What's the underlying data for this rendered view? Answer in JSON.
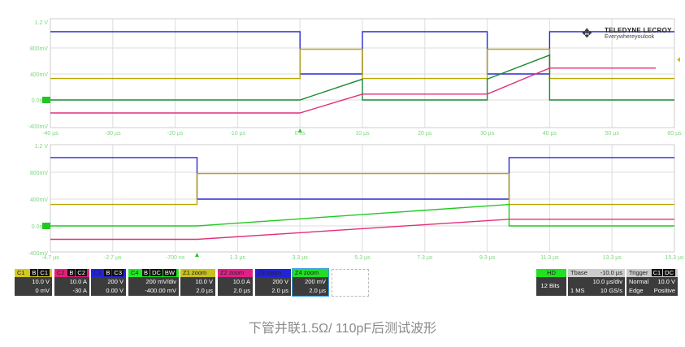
{
  "logo": {
    "brand": "TELEDYNE LECROY",
    "tagline": "Everywhereyoulook"
  },
  "colors": {
    "C1": "#b8a600",
    "C2": "#e0307a",
    "C3": "#2a2ad0",
    "C4": "#22c822",
    "C4dark": "#1a8a35",
    "axis_text": "#7cd67c"
  },
  "chart_data": [
    {
      "type": "line",
      "xlabel": "",
      "ylabel": "",
      "xlim": [
        -40,
        60
      ],
      "ylim": [
        -0.4,
        1.2
      ],
      "grid": true,
      "x_ticks": [
        "-40 µs",
        "-30 µs",
        "-20 µs",
        "-10 µs",
        "0 ns",
        "10 µs",
        "20 µs",
        "30 µs",
        "40 µs",
        "50 µs",
        "60 µs"
      ],
      "y_ticks": [
        {
          "v": 1.2,
          "label": "1.2 V"
        },
        {
          "v": 0.8,
          "label": "800mV"
        },
        {
          "v": 0.4,
          "label": "400mV"
        },
        {
          "v": 0,
          "label": "0.0mV"
        },
        {
          "v": -0.4,
          "label": "-400mV"
        }
      ],
      "trigger_time": 0,
      "series": [
        {
          "ch": "C3",
          "points": [
            [
              -40,
              1.05
            ],
            [
              0,
              1.05
            ],
            [
              0,
              0.4
            ],
            [
              10,
              0.4
            ],
            [
              10,
              1.05
            ],
            [
              30,
              1.05
            ],
            [
              30,
              0.4
            ],
            [
              40,
              0.4
            ],
            [
              40,
              1.05
            ],
            [
              60,
              1.05
            ]
          ]
        },
        {
          "ch": "C1",
          "points": [
            [
              -40,
              0.33
            ],
            [
              0,
              0.33
            ],
            [
              0,
              0.78
            ],
            [
              10,
              0.78
            ],
            [
              10,
              0.33
            ],
            [
              30,
              0.33
            ],
            [
              30,
              0.78
            ],
            [
              40,
              0.78
            ],
            [
              40,
              0.33
            ],
            [
              60,
              0.33
            ]
          ]
        },
        {
          "ch": "C4dark",
          "points": [
            [
              -40,
              0
            ],
            [
              0,
              0
            ],
            [
              10,
              0.32
            ],
            [
              10,
              0
            ],
            [
              30,
              0
            ],
            [
              30,
              0.32
            ],
            [
              40,
              0.69
            ],
            [
              40,
              0
            ],
            [
              60,
              0
            ]
          ]
        },
        {
          "ch": "C2",
          "points": [
            [
              -40,
              -0.2
            ],
            [
              0,
              -0.2
            ],
            [
              10,
              0.09
            ],
            [
              30,
              0.09
            ],
            [
              40,
              0.49
            ],
            [
              57,
              0.49
            ]
          ]
        }
      ]
    },
    {
      "type": "line",
      "xlabel": "",
      "ylabel": "",
      "xlim": [
        -4.7,
        15.3
      ],
      "ylim": [
        -0.4,
        1.2
      ],
      "grid": true,
      "x_ticks": [
        "-4.7 µs",
        "-2.7 µs",
        "-700 ns",
        "1.3 µs",
        "3.3 µs",
        "5.3 µs",
        "7.3 µs",
        "9.3 µs",
        "11.3 µs",
        "13.3 µs",
        "15.3 µs"
      ],
      "y_ticks": [
        {
          "v": 1.2,
          "label": "1.2 V"
        },
        {
          "v": 0.8,
          "label": "800mV"
        },
        {
          "v": 0.4,
          "label": "400mV"
        },
        {
          "v": 0,
          "label": "0.0mV"
        },
        {
          "v": -0.4,
          "label": "-400mV"
        }
      ],
      "trigger_time": 0,
      "series": [
        {
          "ch": "C3",
          "points": [
            [
              -4.7,
              1.02
            ],
            [
              0,
              1.02
            ],
            [
              0,
              0.4
            ],
            [
              10,
              0.4
            ],
            [
              10,
              1.02
            ],
            [
              15.3,
              1.02
            ]
          ]
        },
        {
          "ch": "C1",
          "points": [
            [
              -4.7,
              0.32
            ],
            [
              0,
              0.32
            ],
            [
              0,
              0.78
            ],
            [
              10,
              0.78
            ],
            [
              10,
              0.32
            ],
            [
              15.3,
              0.32
            ]
          ]
        },
        {
          "ch": "C4",
          "points": [
            [
              -4.7,
              0
            ],
            [
              0,
              0
            ],
            [
              10,
              0.32
            ],
            [
              10,
              0
            ],
            [
              15.3,
              0
            ]
          ]
        },
        {
          "ch": "C2",
          "points": [
            [
              -4.7,
              -0.2
            ],
            [
              0,
              -0.2
            ],
            [
              10,
              0.1
            ],
            [
              15.3,
              0.1
            ]
          ]
        }
      ]
    }
  ],
  "channels": [
    {
      "name": "C1",
      "badges": [
        "B",
        "C1"
      ],
      "l1": "10.0 V",
      "l2": "0 mV",
      "color": "#d4c820"
    },
    {
      "name": "C2",
      "badges": [
        "B",
        "C2"
      ],
      "l1": "10.0 A",
      "l2": "-30 A",
      "color": "#e8207a"
    },
    {
      "name": "C3",
      "badges": [
        "B",
        "C3"
      ],
      "l1": "200 V",
      "l2": "0.00 V",
      "color": "#2222e0"
    },
    {
      "name": "C4",
      "badges": [
        "B",
        "DC",
        "BW"
      ],
      "l1": "200 mV/div",
      "l2": "-400.00 mV",
      "color": "#22e822"
    },
    {
      "name": "Z1 zoom",
      "l1": "10.0 V",
      "l2": "2.0 µs",
      "color": "#c8c020"
    },
    {
      "name": "Z2 zoom",
      "l1": "10.0 A",
      "l2": "2.0 µs",
      "color": "#e02088"
    },
    {
      "name": "Z3 zoom",
      "l1": "200 V",
      "l2": "2.0 µs",
      "color": "#2222d8"
    },
    {
      "name": "Z4 zoom",
      "l1": "200 mV",
      "l2": "2.0 µs",
      "color": "#22dd22"
    }
  ],
  "acq": {
    "hd": "HD",
    "bits": "12 Bits"
  },
  "timebase": {
    "label": "Tbase",
    "delay": "-10.0 µs",
    "div": "10.0 µs/div",
    "samples": "1 MS",
    "rate": "10 GS/s"
  },
  "trigger": {
    "label": "Trigger",
    "source": "C1",
    "coupling": "DC",
    "mode": "Normal",
    "level": "10.0 V",
    "type": "Edge",
    "slope": "Positive"
  },
  "caption": "下管并联1.5Ω/ 110pF后测试波形"
}
